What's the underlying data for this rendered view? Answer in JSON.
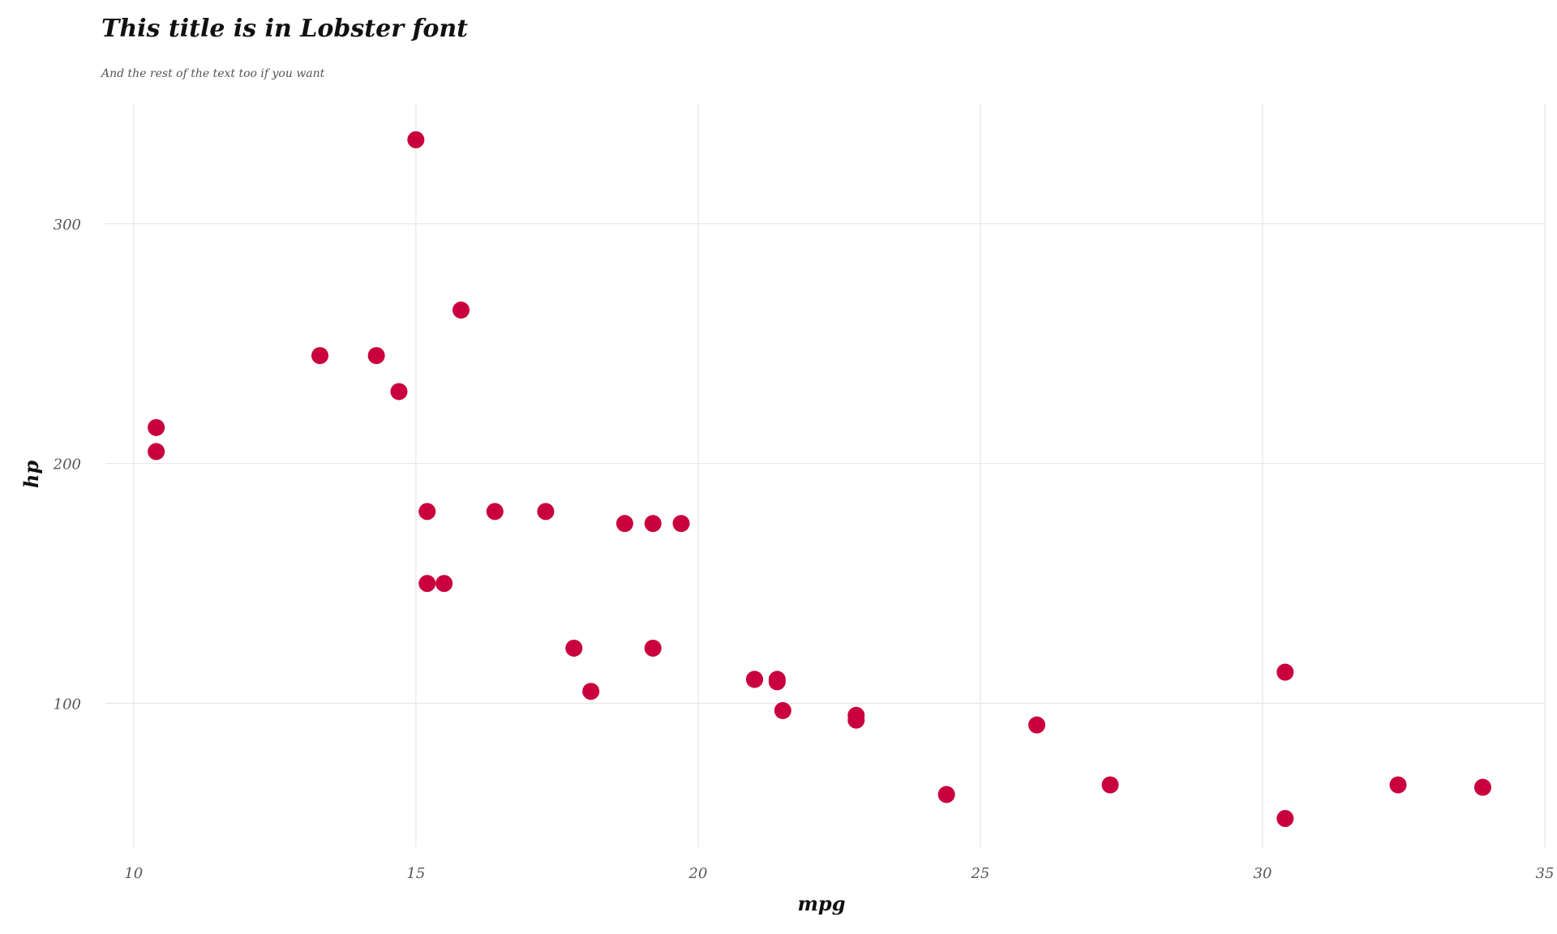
{
  "chart_data": {
    "type": "scatter",
    "title": "This title is in Lobster font",
    "subtitle": "And the rest of the text too if you want",
    "xlabel": "mpg",
    "ylabel": "hp",
    "xlim": [
      9.5,
      35
    ],
    "ylim": [
      40,
      350
    ],
    "xticks": [
      10,
      15,
      20,
      25,
      30,
      35
    ],
    "yticks": [
      100,
      200,
      300
    ],
    "grid": true,
    "point_color": "#c9003d",
    "points": [
      {
        "x": 21.0,
        "y": 110
      },
      {
        "x": 21.0,
        "y": 110
      },
      {
        "x": 22.8,
        "y": 93
      },
      {
        "x": 21.4,
        "y": 110
      },
      {
        "x": 18.7,
        "y": 175
      },
      {
        "x": 18.1,
        "y": 105
      },
      {
        "x": 14.3,
        "y": 245
      },
      {
        "x": 24.4,
        "y": 62
      },
      {
        "x": 22.8,
        "y": 95
      },
      {
        "x": 19.2,
        "y": 123
      },
      {
        "x": 17.8,
        "y": 123
      },
      {
        "x": 16.4,
        "y": 180
      },
      {
        "x": 17.3,
        "y": 180
      },
      {
        "x": 15.2,
        "y": 180
      },
      {
        "x": 10.4,
        "y": 205
      },
      {
        "x": 10.4,
        "y": 215
      },
      {
        "x": 14.7,
        "y": 230
      },
      {
        "x": 32.4,
        "y": 66
      },
      {
        "x": 30.4,
        "y": 52
      },
      {
        "x": 33.9,
        "y": 65
      },
      {
        "x": 21.5,
        "y": 97
      },
      {
        "x": 15.5,
        "y": 150
      },
      {
        "x": 15.2,
        "y": 150
      },
      {
        "x": 13.3,
        "y": 245
      },
      {
        "x": 19.2,
        "y": 175
      },
      {
        "x": 27.3,
        "y": 66
      },
      {
        "x": 26.0,
        "y": 91
      },
      {
        "x": 30.4,
        "y": 113
      },
      {
        "x": 15.8,
        "y": 264
      },
      {
        "x": 19.7,
        "y": 175
      },
      {
        "x": 15.0,
        "y": 335
      },
      {
        "x": 21.4,
        "y": 109
      }
    ]
  }
}
